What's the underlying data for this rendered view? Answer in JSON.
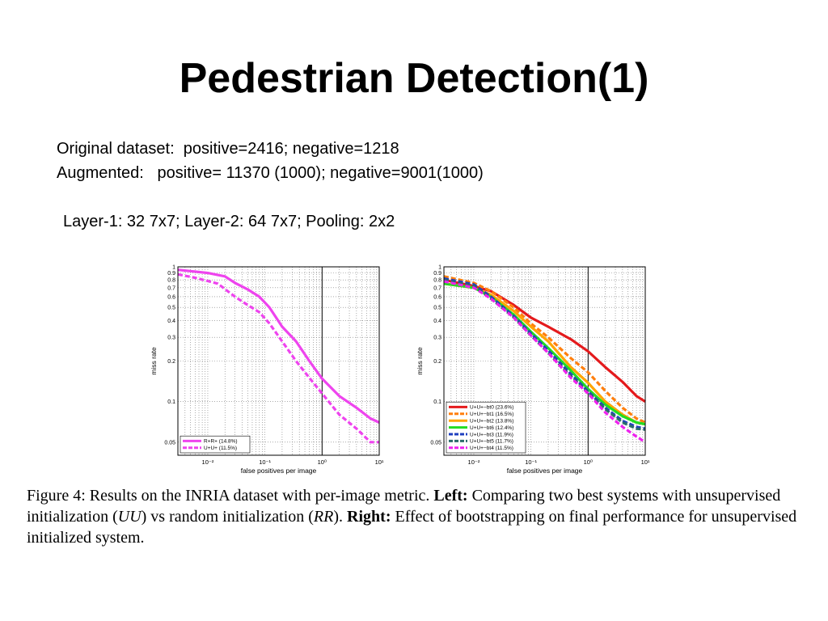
{
  "slide": {
    "title": "Pedestrian Detection(1)",
    "lines": [
      "Original dataset:  positive=2416; negative=1218",
      "Augmented:   positive= 11370 (1000); negative=9001(1000)",
      "Layer-1: 32 7x7; Layer-2: 64 7x7; Pooling: 2x2"
    ],
    "caption": {
      "figure_label": "Figure 4:",
      "part1": " Results on the INRIA dataset with per-image metric. ",
      "left_label": "Left:",
      "part2": " Comparing two best systems with unsupervised initialization (",
      "uu": "UU",
      "part3": ") vs random initialization (",
      "rr": "RR",
      "part4": "). ",
      "right_label": "Right:",
      "part5": " Effect of bootstrapping on final performance for unsupervised initialized system."
    }
  },
  "chart_data": [
    {
      "type": "line",
      "xlabel": "false positives per image",
      "ylabel": "miss rate",
      "x_scale": "log",
      "y_scale": "log",
      "xlim": [
        0.003,
        10
      ],
      "ylim": [
        0.04,
        1
      ],
      "x_ticks": [
        "10⁻²",
        "10⁻¹",
        "10⁰",
        "10¹"
      ],
      "y_ticks": [
        "1",
        "0.9",
        "0.8",
        "0.7",
        "0.6",
        "0.5",
        "0.4",
        "0.3",
        "0.2",
        "0.1",
        "0.05"
      ],
      "grid": true,
      "legend_position": "bottom-left",
      "series": [
        {
          "name": "R+R+  (14.8%)",
          "color": "#ee44ee",
          "dash": "solid",
          "x": [
            0.003,
            0.01,
            0.02,
            0.03,
            0.05,
            0.08,
            0.12,
            0.2,
            0.35,
            0.6,
            1,
            2,
            4,
            7,
            10
          ],
          "y": [
            0.95,
            0.9,
            0.85,
            0.76,
            0.68,
            0.6,
            0.5,
            0.36,
            0.28,
            0.2,
            0.148,
            0.11,
            0.09,
            0.075,
            0.07
          ]
        },
        {
          "name": "U+U+  (11.5%)",
          "color": "#ee44ee",
          "dash": "dashed",
          "x": [
            0.003,
            0.006,
            0.015,
            0.03,
            0.05,
            0.08,
            0.12,
            0.2,
            0.35,
            0.6,
            1,
            2,
            4,
            7,
            10
          ],
          "y": [
            0.88,
            0.83,
            0.75,
            0.6,
            0.52,
            0.46,
            0.38,
            0.28,
            0.2,
            0.15,
            0.115,
            0.08,
            0.063,
            0.05,
            0.05
          ]
        }
      ]
    },
    {
      "type": "line",
      "xlabel": "false positives per image",
      "ylabel": "miss rate",
      "x_scale": "log",
      "y_scale": "log",
      "xlim": [
        0.003,
        10
      ],
      "ylim": [
        0.04,
        1
      ],
      "x_ticks": [
        "10⁻²",
        "10⁻¹",
        "10⁰",
        "10¹"
      ],
      "y_ticks": [
        "1",
        "0.9",
        "0.8",
        "0.7",
        "0.6",
        "0.5",
        "0.4",
        "0.3",
        "0.2",
        "0.1",
        "0.05"
      ],
      "grid": true,
      "legend_position": "bottom-left",
      "series": [
        {
          "name": "U+U+−bt0  (23.6%)",
          "color": "#e41a1c",
          "dash": "solid",
          "x": [
            0.003,
            0.01,
            0.02,
            0.05,
            0.1,
            0.2,
            0.5,
            1,
            2,
            4,
            7,
            10
          ],
          "y": [
            0.8,
            0.72,
            0.66,
            0.52,
            0.42,
            0.36,
            0.29,
            0.236,
            0.18,
            0.14,
            0.11,
            0.1
          ]
        },
        {
          "name": "U+U+−bt1  (16.5%)",
          "color": "#ff7f0e",
          "dash": "dashed",
          "x": [
            0.003,
            0.01,
            0.02,
            0.05,
            0.1,
            0.2,
            0.5,
            1,
            2,
            4,
            7,
            10
          ],
          "y": [
            0.85,
            0.76,
            0.66,
            0.5,
            0.38,
            0.3,
            0.21,
            0.165,
            0.12,
            0.09,
            0.075,
            0.07
          ]
        },
        {
          "name": "U+U+−bt2  (13.8%)",
          "color": "#ffa500",
          "dash": "solid",
          "x": [
            0.003,
            0.01,
            0.02,
            0.05,
            0.1,
            0.2,
            0.5,
            1,
            2,
            4,
            7,
            10
          ],
          "y": [
            0.75,
            0.7,
            0.62,
            0.47,
            0.36,
            0.28,
            0.18,
            0.138,
            0.1,
            0.08,
            0.07,
            0.068
          ]
        },
        {
          "name": "U+U+−bt6  (12.4%)",
          "color": "#22dd22",
          "dash": "solid",
          "x": [
            0.003,
            0.01,
            0.02,
            0.05,
            0.1,
            0.2,
            0.5,
            1,
            2,
            4,
            7,
            10
          ],
          "y": [
            0.75,
            0.7,
            0.6,
            0.44,
            0.33,
            0.25,
            0.17,
            0.124,
            0.095,
            0.078,
            0.07,
            0.068
          ]
        },
        {
          "name": "U+U+−bt3  (11.9%)",
          "color": "#1f3fbf",
          "dash": "dashed",
          "x": [
            0.003,
            0.01,
            0.02,
            0.05,
            0.1,
            0.2,
            0.5,
            1,
            2,
            4,
            7,
            10
          ],
          "y": [
            0.82,
            0.74,
            0.6,
            0.43,
            0.32,
            0.24,
            0.16,
            0.119,
            0.09,
            0.072,
            0.065,
            0.063
          ]
        },
        {
          "name": "U+U+−bt5  (11.7%)",
          "color": "#2a6b6b",
          "dash": "dashed",
          "x": [
            0.003,
            0.01,
            0.02,
            0.05,
            0.1,
            0.2,
            0.5,
            1,
            2,
            4,
            7,
            10
          ],
          "y": [
            0.8,
            0.72,
            0.58,
            0.42,
            0.31,
            0.23,
            0.155,
            0.117,
            0.088,
            0.07,
            0.063,
            0.062
          ]
        },
        {
          "name": "U+U+−bt4  (11.5%)",
          "color": "#ee22ee",
          "dash": "dashed",
          "x": [
            0.003,
            0.01,
            0.02,
            0.05,
            0.1,
            0.2,
            0.5,
            1,
            2,
            4,
            7,
            10
          ],
          "y": [
            0.78,
            0.7,
            0.58,
            0.42,
            0.31,
            0.23,
            0.15,
            0.115,
            0.083,
            0.065,
            0.055,
            0.05
          ]
        }
      ]
    }
  ]
}
